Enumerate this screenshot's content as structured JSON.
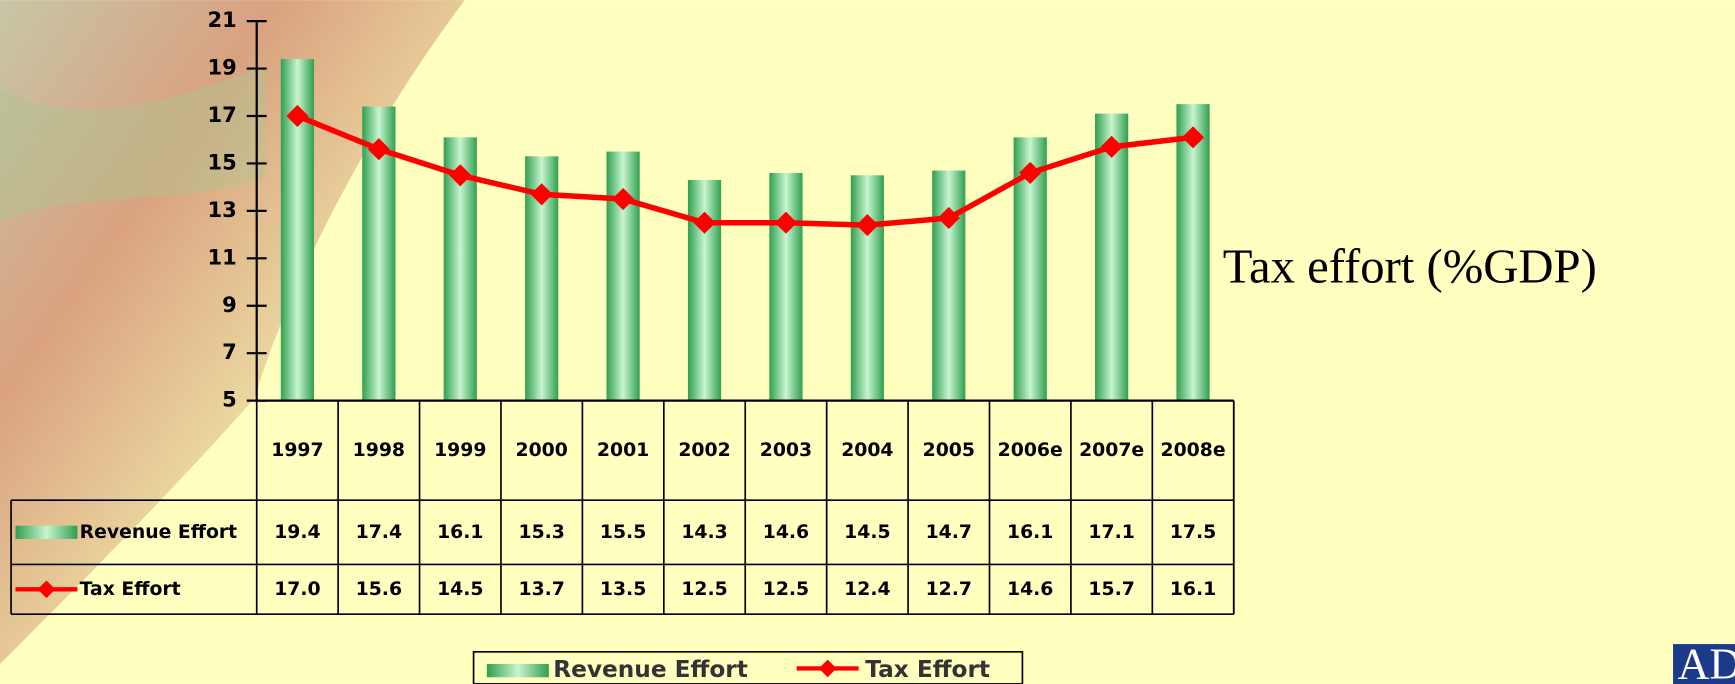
{
  "chart_data": {
    "type": "bar",
    "title": "Tax effort (%GDP)",
    "categories": [
      "1997",
      "1998",
      "1999",
      "2000",
      "2001",
      "2002",
      "2003",
      "2004",
      "2005",
      "2006e",
      "2007e",
      "2008e"
    ],
    "series": [
      {
        "name": "Revenue Effort",
        "type": "bar",
        "color": "#4fbf6f",
        "values": [
          19.4,
          17.4,
          16.1,
          15.3,
          15.5,
          14.3,
          14.6,
          14.5,
          14.7,
          16.1,
          17.1,
          17.5
        ]
      },
      {
        "name": "Tax Effort",
        "type": "line",
        "color": "#ff0000",
        "values": [
          17,
          15.6,
          14.5,
          13.7,
          13.5,
          12.5,
          12.5,
          12.4,
          12.7,
          14.6,
          15.7,
          16.1
        ],
        "value_labels": [
          "17.0",
          "15.6",
          "14.5",
          "13.7",
          "13.5",
          "12.5",
          "12.5",
          "12.4",
          "12.7",
          "14.6",
          "15.7",
          "16.1"
        ]
      }
    ],
    "ylim": [
      5,
      21
    ],
    "yticks": [
      5,
      7,
      9,
      11,
      13,
      15,
      17,
      19,
      21
    ]
  },
  "logo": "ADB"
}
